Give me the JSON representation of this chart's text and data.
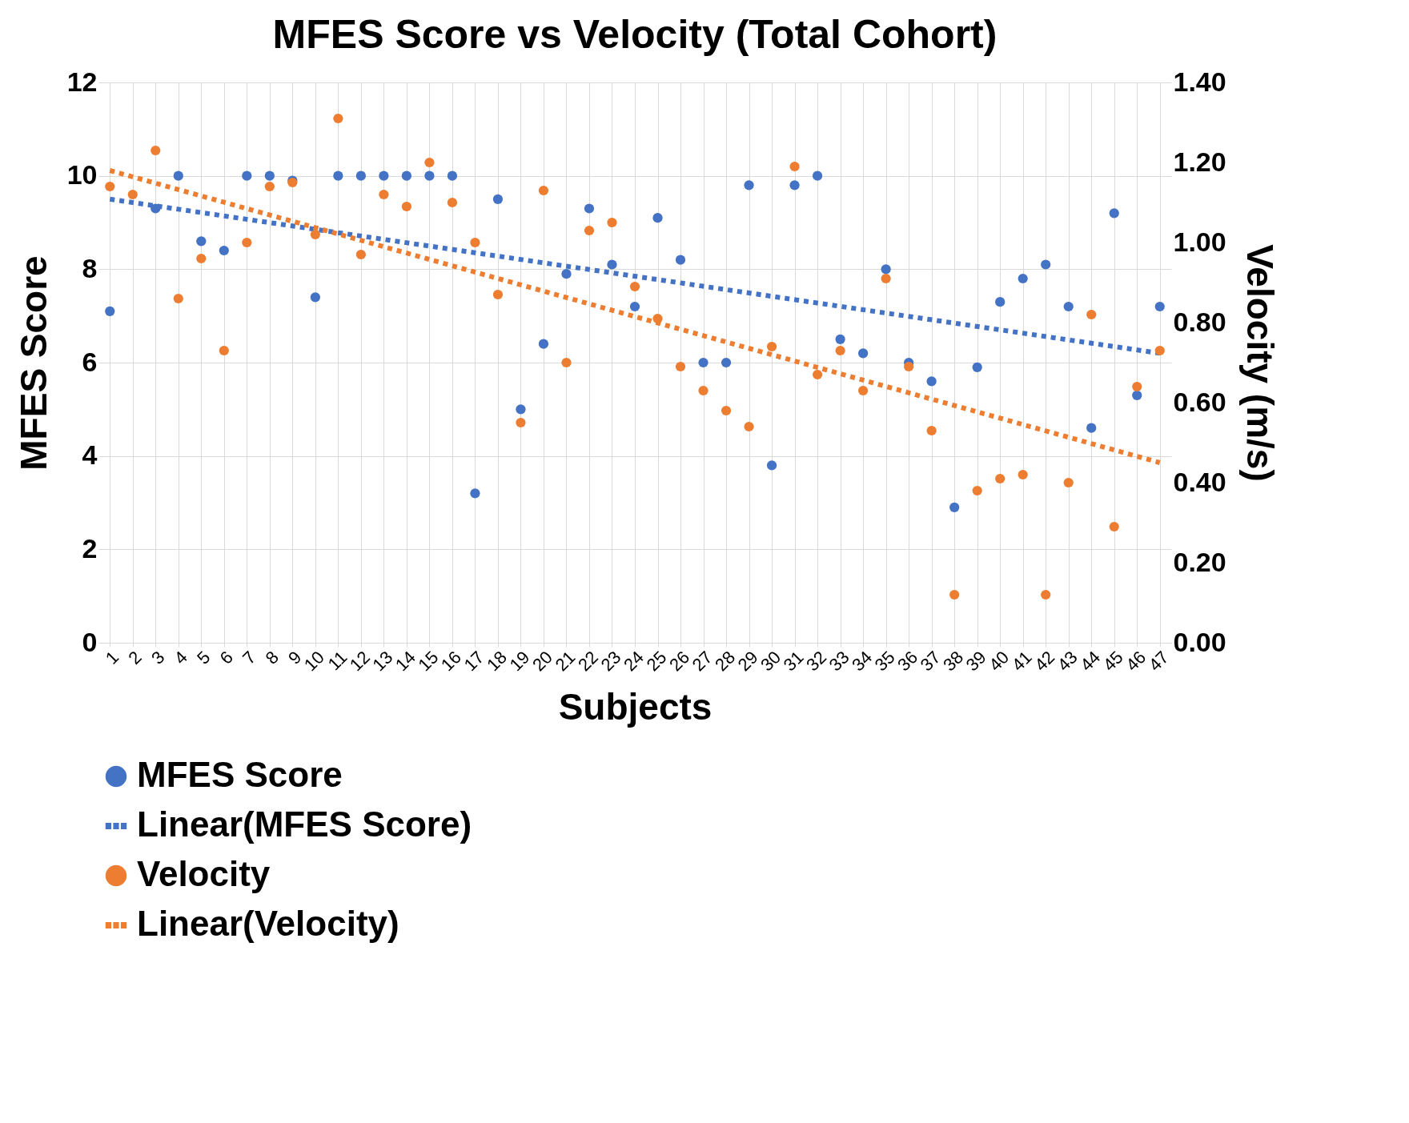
{
  "chart_data": {
    "type": "scatter",
    "title": "MFES Score vs Velocity (Total Cohort)",
    "xlabel": "Subjects",
    "ylabel": "MFES Score",
    "y2label": "Velocity (m/s)",
    "categories": [
      "1",
      "2",
      "3",
      "4",
      "5",
      "6",
      "7",
      "8",
      "9",
      "10",
      "11",
      "12",
      "13",
      "14",
      "15",
      "16",
      "17",
      "18",
      "19",
      "20",
      "21",
      "22",
      "23",
      "24",
      "25",
      "26",
      "27",
      "28",
      "29",
      "30",
      "31",
      "32",
      "33",
      "34",
      "35",
      "36",
      "37",
      "38",
      "39",
      "40",
      "41",
      "42",
      "43",
      "44",
      "45",
      "46",
      "47"
    ],
    "ylim": [
      0,
      12
    ],
    "yticks": [
      0,
      2,
      4,
      6,
      8,
      10,
      12
    ],
    "y2lim": [
      0,
      1.4
    ],
    "y2ticks": [
      {
        "value": 0,
        "label": "0.00"
      },
      {
        "value": 0.2,
        "label": "0.20"
      },
      {
        "value": 0.4,
        "label": "0.40"
      },
      {
        "value": 0.6,
        "label": "0.60"
      },
      {
        "value": 0.8,
        "label": "0.80"
      },
      {
        "value": 1,
        "label": "1.00"
      },
      {
        "value": 1.2,
        "label": "1.20"
      },
      {
        "value": 1.4,
        "label": "1.40"
      }
    ],
    "grid": true,
    "legend": "bottom",
    "series": [
      {
        "name": "MFES Score",
        "marker": "circle",
        "color": "#4472c4",
        "values": [
          7.1,
          null,
          9.3,
          10,
          8.6,
          8.4,
          10,
          10,
          9.9,
          7.4,
          10,
          10,
          10,
          10,
          10,
          10,
          3.2,
          9.5,
          5.0,
          6.4,
          7.9,
          9.3,
          8.1,
          7.2,
          9.1,
          8.2,
          6.0,
          6.0,
          9.8,
          3.8,
          9.8,
          10,
          6.5,
          6.2,
          8.0,
          6.0,
          5.6,
          2.9,
          5.9,
          7.3,
          7.8,
          8.1,
          7.2,
          4.6,
          9.2,
          5.3,
          7.2
        ]
      },
      {
        "name": "Linear(MFES Score)",
        "type": "line",
        "marker": "none",
        "line_style": "dotted",
        "color": "#4472c4",
        "x": [
          "1",
          "47"
        ],
        "values": [
          9.5,
          6.2
        ]
      },
      {
        "name": "Velocity",
        "marker": "circle",
        "axis": "y2",
        "color": "#ed7d31",
        "values": [
          1.14,
          1.12,
          1.23,
          0.86,
          0.96,
          0.73,
          1.0,
          1.14,
          1.15,
          1.02,
          1.31,
          0.97,
          1.12,
          1.09,
          1.2,
          1.1,
          1.0,
          0.87,
          0.55,
          1.13,
          0.7,
          1.03,
          1.05,
          0.89,
          0.81,
          0.69,
          0.63,
          0.58,
          0.54,
          0.74,
          1.19,
          0.67,
          0.73,
          0.63,
          0.91,
          0.69,
          0.53,
          0.12,
          0.38,
          0.41,
          0.42,
          0.12,
          0.4,
          0.82,
          0.29,
          0.64,
          0.73
        ]
      },
      {
        "name": "Linear(Velocity)",
        "type": "line",
        "marker": "none",
        "line_style": "dotted",
        "axis": "y2",
        "color": "#ed7d31",
        "x": [
          "1",
          "47"
        ],
        "values": [
          1.18,
          0.45
        ]
      }
    ]
  }
}
